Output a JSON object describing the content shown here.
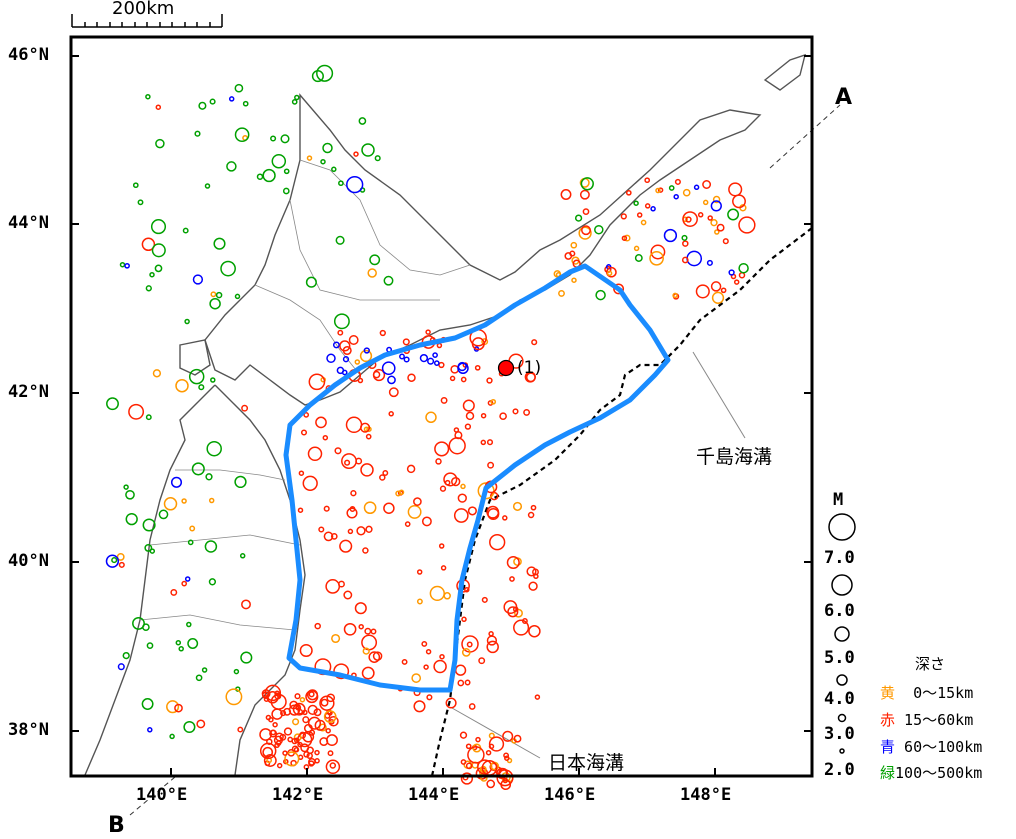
{
  "scale_bar": {
    "label": "200km"
  },
  "lat_labels": [
    "46°N",
    "44°N",
    "42°N",
    "40°N",
    "38°N"
  ],
  "lon_labels": [
    "140°E",
    "142°E",
    "144°E",
    "146°E",
    "148°E"
  ],
  "section_ends": {
    "a": "A",
    "b": "B"
  },
  "trenches": {
    "kuril": "千島海溝",
    "japan": "日本海溝"
  },
  "event": {
    "label": "(1)",
    "color": "#ff0000"
  },
  "magnitude_legend": {
    "title": "M",
    "values": [
      "7.0",
      "6.0",
      "5.0",
      "4.0",
      "3.0",
      "2.0"
    ]
  },
  "depth_legend": {
    "title": "深さ",
    "rows": [
      {
        "name": "黄",
        "range": "  0～15km",
        "color": "#ff9900"
      },
      {
        "name": "赤",
        "range": " 15～60km",
        "color": "#ff2200"
      },
      {
        "name": "青",
        "range": " 60～100km",
        "color": "#0000ff"
      },
      {
        "name": "緑",
        "range": "100～500km",
        "color": "#00a000"
      }
    ]
  },
  "region_outline_color": "#1a8cff"
}
